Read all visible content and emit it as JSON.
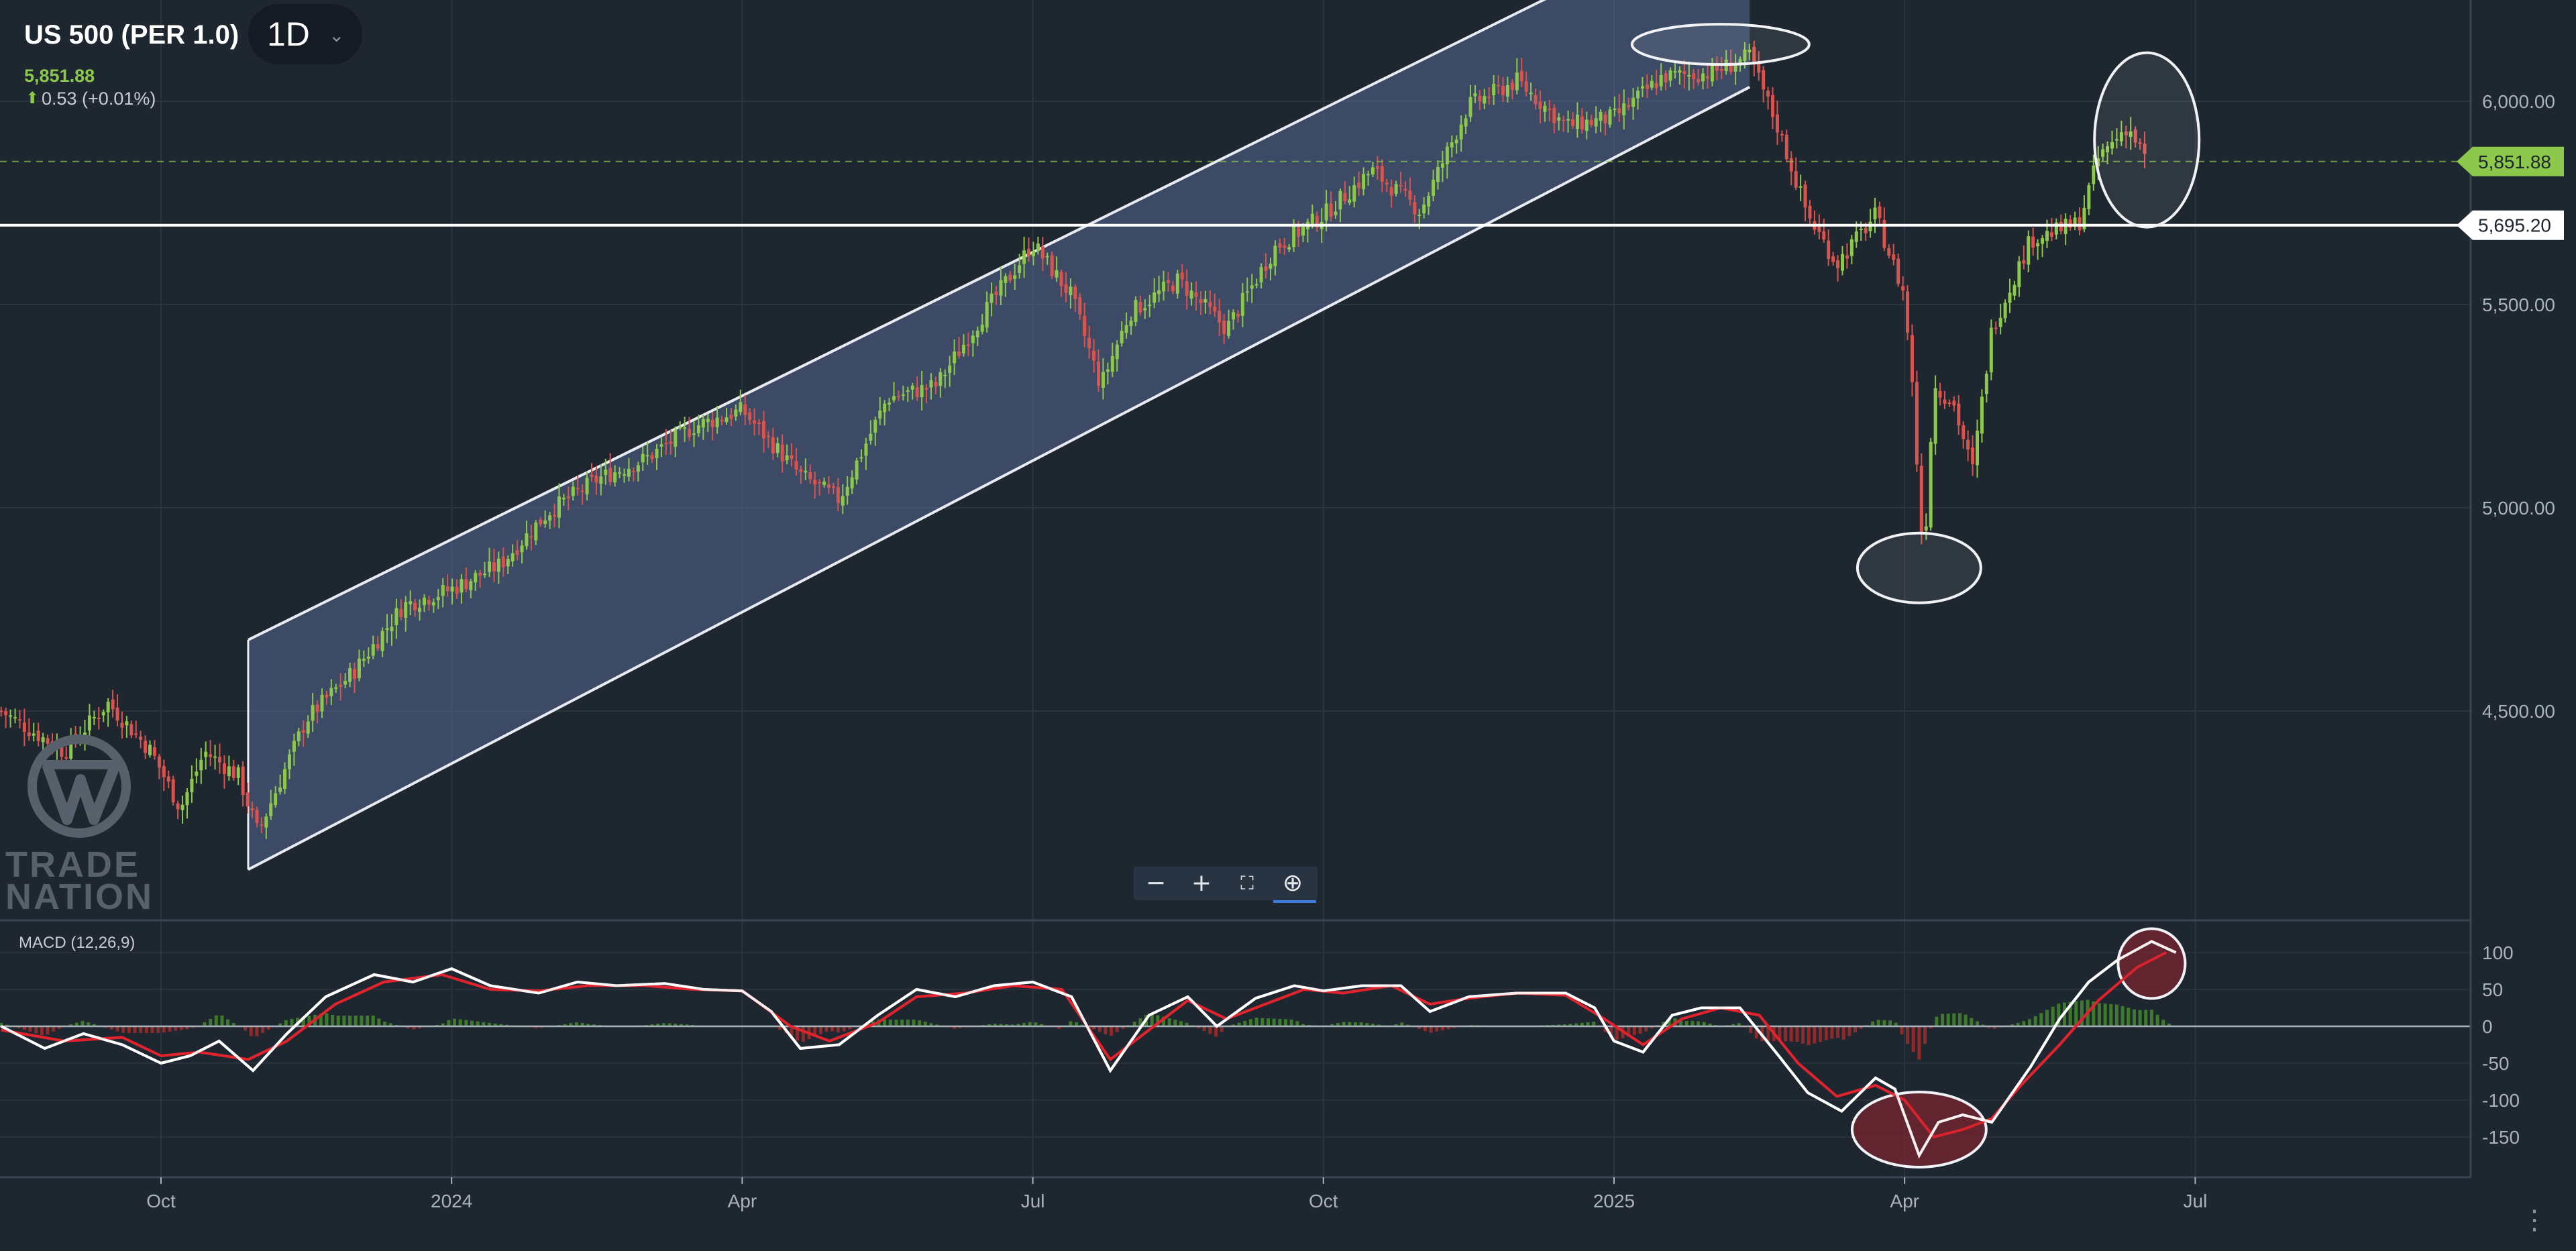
{
  "header": {
    "symbol": "US 500 (PER 1.0)",
    "timeframe": "1D",
    "last_price": "5,851.88",
    "change": "0.53 (+0.01%)"
  },
  "watermark": {
    "line1": "TRADE",
    "line2": "NATION"
  },
  "indicator_label": "MACD (12,26,9)",
  "zoom_controls": [
    "zoom-out",
    "zoom-in",
    "fit-screen",
    "zoom-search"
  ],
  "colors": {
    "background": "#1e2630",
    "up_candle": "#8cc84b",
    "down_candle": "#d9534f",
    "channel_fill": "#5a6e9a",
    "macd_line": "#ffffff",
    "signal_line": "#e0242c",
    "price_tag": "#8cc84b",
    "highlight_ellipse": "#7a2630"
  },
  "chart_data": [
    {
      "type": "candlestick",
      "title": "US 500 (PER 1.0)",
      "ylim": [
        4150,
        6350
      ],
      "y_ticks": [
        4500,
        5000,
        5500,
        6000
      ],
      "y_tick_labels": [
        "4,500.00",
        "5,000.00",
        "5,500.00",
        "6,000.00"
      ],
      "x_ticks": [
        {
          "label": "Oct",
          "t": 0.0
        },
        {
          "label": "2024",
          "t": 3.0
        },
        {
          "label": "Apr",
          "t": 6.0
        },
        {
          "label": "Jul",
          "t": 9.0
        },
        {
          "label": "Oct",
          "t": 12.0
        },
        {
          "label": "2025",
          "t": 15.0
        },
        {
          "label": "Apr",
          "t": 18.0
        },
        {
          "label": "Jul",
          "t": 21.0
        }
      ],
      "xlim": [
        -1.65,
        23.6
      ],
      "close_path": [
        [
          -1.65,
          4500
        ],
        [
          -1.0,
          4400
        ],
        [
          -0.55,
          4520
        ],
        [
          -0.1,
          4400
        ],
        [
          0.2,
          4260
        ],
        [
          0.45,
          4400
        ],
        [
          0.8,
          4340
        ],
        [
          1.0,
          4200
        ],
        [
          1.5,
          4480
        ],
        [
          2.0,
          4600
        ],
        [
          2.5,
          4760
        ],
        [
          3.0,
          4800
        ],
        [
          3.5,
          4860
        ],
        [
          4.0,
          4990
        ],
        [
          4.5,
          5070
        ],
        [
          5.0,
          5120
        ],
        [
          5.5,
          5200
        ],
        [
          6.0,
          5240
        ],
        [
          6.6,
          5080
        ],
        [
          7.0,
          5020
        ],
        [
          7.5,
          5270
        ],
        [
          8.0,
          5300
        ],
        [
          8.5,
          5480
        ],
        [
          9.0,
          5650
        ],
        [
          9.4,
          5520
        ],
        [
          9.7,
          5300
        ],
        [
          10.0,
          5480
        ],
        [
          10.5,
          5560
        ],
        [
          11.0,
          5440
        ],
        [
          11.5,
          5640
        ],
        [
          12.0,
          5720
        ],
        [
          12.5,
          5830
        ],
        [
          13.0,
          5730
        ],
        [
          13.5,
          5990
        ],
        [
          14.0,
          6050
        ],
        [
          14.5,
          5940
        ],
        [
          15.0,
          5960
        ],
        [
          15.5,
          6060
        ],
        [
          16.0,
          6070
        ],
        [
          16.4,
          6110
        ],
        [
          16.7,
          5930
        ],
        [
          17.0,
          5720
        ],
        [
          17.3,
          5600
        ],
        [
          17.7,
          5720
        ],
        [
          18.0,
          5520
        ],
        [
          18.1,
          5240
        ],
        [
          18.15,
          5000
        ],
        [
          18.2,
          4880
        ],
        [
          18.3,
          5300
        ],
        [
          18.5,
          5260
        ],
        [
          18.7,
          5090
        ],
        [
          18.9,
          5440
        ],
        [
          19.3,
          5660
        ],
        [
          19.8,
          5700
        ],
        [
          20.0,
          5860
        ],
        [
          20.3,
          5940
        ],
        [
          20.5,
          5851.88
        ]
      ],
      "channel": {
        "upper": [
          [
            0.9,
            4675
          ],
          [
            16.4,
            6500
          ]
        ],
        "lower": [
          [
            0.9,
            4110
          ],
          [
            16.4,
            6035
          ]
        ]
      },
      "horizontal_line": {
        "value": 5695.2,
        "label": "5,695.20"
      },
      "current_price_line": {
        "value": 5851.88,
        "label": "5,851.88"
      },
      "annotations": [
        {
          "shape": "ellipse",
          "t": 16.1,
          "value": 6140
        },
        {
          "shape": "ellipse",
          "t": 18.15,
          "value": 4852
        },
        {
          "shape": "ellipse",
          "t": 20.5,
          "value": 5905
        }
      ]
    },
    {
      "type": "line",
      "title": "MACD (12,26,9)",
      "ylim": [
        -200,
        130
      ],
      "y_ticks": [
        100,
        50,
        0,
        -50,
        -100,
        -150
      ],
      "y_tick_labels": [
        "100",
        "50",
        "0",
        "-50",
        "-100",
        "-150"
      ],
      "series": [
        {
          "name": "",
          "color": "#ffffff",
          "points": [
            [
              -1.65,
              0
            ],
            [
              -1.2,
              -30
            ],
            [
              -0.8,
              -10
            ],
            [
              -0.4,
              -25
            ],
            [
              0.0,
              -50
            ],
            [
              0.3,
              -40
            ],
            [
              0.6,
              -20
            ],
            [
              0.95,
              -60
            ],
            [
              1.3,
              -10
            ],
            [
              1.7,
              40
            ],
            [
              2.2,
              70
            ],
            [
              2.6,
              60
            ],
            [
              3.0,
              78
            ],
            [
              3.4,
              55
            ],
            [
              3.9,
              45
            ],
            [
              4.3,
              60
            ],
            [
              4.7,
              55
            ],
            [
              5.2,
              58
            ],
            [
              5.6,
              50
            ],
            [
              6.0,
              48
            ],
            [
              6.3,
              20
            ],
            [
              6.6,
              -30
            ],
            [
              7.0,
              -25
            ],
            [
              7.4,
              15
            ],
            [
              7.8,
              50
            ],
            [
              8.2,
              40
            ],
            [
              8.6,
              55
            ],
            [
              9.0,
              60
            ],
            [
              9.4,
              40
            ],
            [
              9.8,
              -60
            ],
            [
              10.2,
              15
            ],
            [
              10.6,
              40
            ],
            [
              10.9,
              0
            ],
            [
              11.3,
              38
            ],
            [
              11.7,
              55
            ],
            [
              12.0,
              48
            ],
            [
              12.4,
              55
            ],
            [
              12.8,
              55
            ],
            [
              13.1,
              20
            ],
            [
              13.5,
              40
            ],
            [
              14.0,
              45
            ],
            [
              14.5,
              45
            ],
            [
              14.8,
              25
            ],
            [
              15.0,
              -20
            ],
            [
              15.3,
              -35
            ],
            [
              15.6,
              15
            ],
            [
              15.9,
              25
            ],
            [
              16.3,
              25
            ],
            [
              16.7,
              -40
            ],
            [
              17.0,
              -90
            ],
            [
              17.35,
              -115
            ],
            [
              17.7,
              -70
            ],
            [
              17.9,
              -85
            ],
            [
              18.15,
              -175
            ],
            [
              18.35,
              -130
            ],
            [
              18.6,
              -120
            ],
            [
              18.9,
              -130
            ],
            [
              19.3,
              -55
            ],
            [
              19.6,
              10
            ],
            [
              19.9,
              60
            ],
            [
              20.2,
              90
            ],
            [
              20.55,
              115
            ],
            [
              20.8,
              100
            ]
          ]
        },
        {
          "name": "",
          "color": "#e0242c",
          "points": [
            [
              -1.65,
              -5
            ],
            [
              -1.0,
              -20
            ],
            [
              -0.4,
              -15
            ],
            [
              0.0,
              -40
            ],
            [
              0.4,
              -35
            ],
            [
              0.9,
              -45
            ],
            [
              1.3,
              -20
            ],
            [
              1.8,
              30
            ],
            [
              2.3,
              60
            ],
            [
              2.9,
              70
            ],
            [
              3.4,
              50
            ],
            [
              3.9,
              48
            ],
            [
              4.4,
              55
            ],
            [
              5.0,
              55
            ],
            [
              5.5,
              50
            ],
            [
              6.0,
              48
            ],
            [
              6.5,
              0
            ],
            [
              6.9,
              -20
            ],
            [
              7.4,
              5
            ],
            [
              7.8,
              40
            ],
            [
              8.3,
              45
            ],
            [
              8.8,
              55
            ],
            [
              9.3,
              50
            ],
            [
              9.8,
              -45
            ],
            [
              10.3,
              5
            ],
            [
              10.6,
              35
            ],
            [
              11.0,
              10
            ],
            [
              11.4,
              30
            ],
            [
              11.8,
              50
            ],
            [
              12.2,
              45
            ],
            [
              12.7,
              55
            ],
            [
              13.1,
              30
            ],
            [
              13.5,
              38
            ],
            [
              14.0,
              45
            ],
            [
              14.5,
              42
            ],
            [
              14.9,
              10
            ],
            [
              15.3,
              -25
            ],
            [
              15.7,
              10
            ],
            [
              16.1,
              25
            ],
            [
              16.5,
              15
            ],
            [
              16.9,
              -50
            ],
            [
              17.3,
              -95
            ],
            [
              17.7,
              -80
            ],
            [
              18.0,
              -100
            ],
            [
              18.3,
              -150
            ],
            [
              18.6,
              -140
            ],
            [
              18.9,
              -125
            ],
            [
              19.2,
              -80
            ],
            [
              19.6,
              -25
            ],
            [
              20.0,
              35
            ],
            [
              20.4,
              80
            ],
            [
              20.7,
              100
            ]
          ]
        }
      ],
      "annotations": [
        {
          "shape": "ellipse",
          "t": 18.15,
          "value": -140
        },
        {
          "shape": "circle",
          "t": 20.55,
          "value": 85
        }
      ]
    }
  ]
}
